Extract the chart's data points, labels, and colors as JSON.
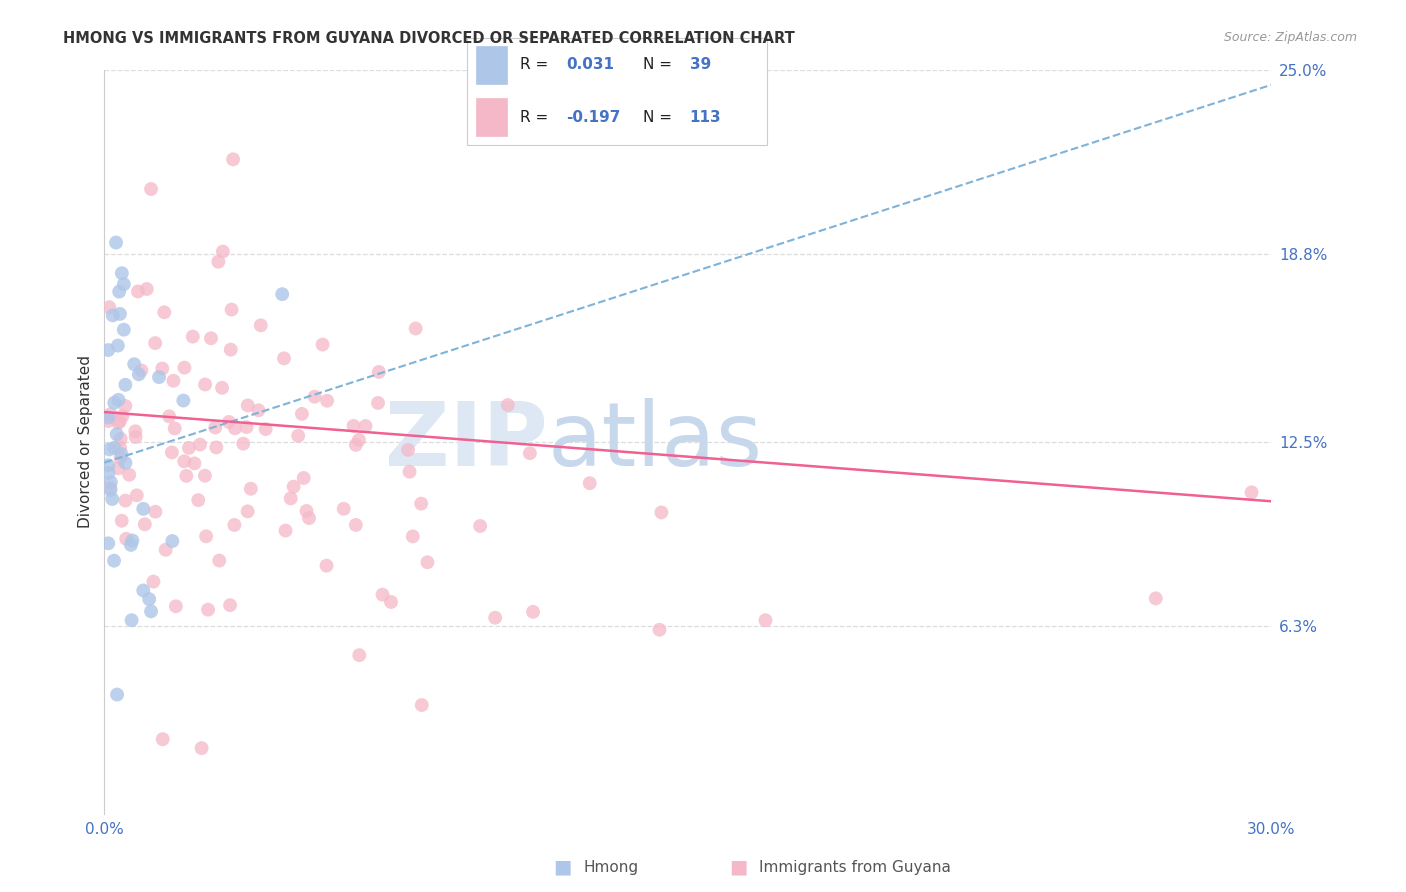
{
  "title": "HMONG VS IMMIGRANTS FROM GUYANA DIVORCED OR SEPARATED CORRELATION CHART",
  "source": "Source: ZipAtlas.com",
  "ylabel": "Divorced or Separated",
  "xlim": [
    0.0,
    0.3
  ],
  "ylim": [
    0.0,
    0.25
  ],
  "ytick_vals": [
    0.063,
    0.125,
    0.188,
    0.25
  ],
  "ytick_labels": [
    "6.3%",
    "12.5%",
    "18.8%",
    "25.0%"
  ],
  "hmong_color": "#aec6e8",
  "guyana_color": "#f5b8c8",
  "hmong_line_color": "#7fb3d9",
  "guyana_line_color": "#f06090",
  "hmong_r": 0.031,
  "hmong_n": 39,
  "guyana_r": -0.197,
  "guyana_n": 113,
  "hmong_line_x0": 0.0,
  "hmong_line_y0": 0.118,
  "hmong_line_x1": 0.3,
  "hmong_line_y1": 0.245,
  "guyana_line_x0": 0.0,
  "guyana_line_y0": 0.135,
  "guyana_line_x1": 0.3,
  "guyana_line_y1": 0.105,
  "grid_color": "#dddddd",
  "spine_color": "#cccccc",
  "tick_color": "#4472c4",
  "text_color": "#333333",
  "source_color": "#999999",
  "watermark_zip_color": "#dde8f4",
  "watermark_atlas_color": "#c8d8ec",
  "legend_box_color": "#cccccc",
  "bottom_label_color": "#555555"
}
